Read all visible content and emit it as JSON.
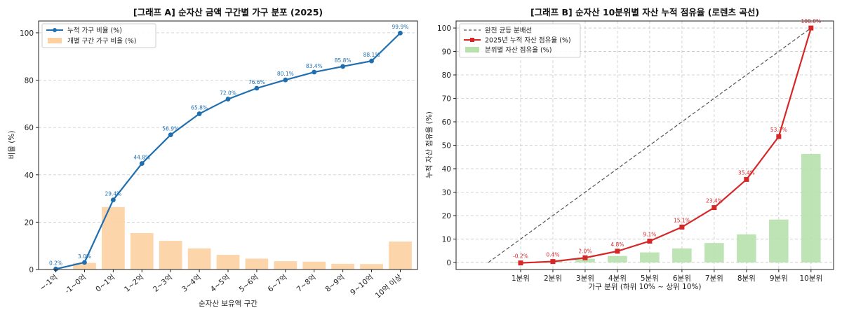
{
  "colors": {
    "line_a": "#1f6fb0",
    "bar_a": "#fdd0a2",
    "line_b": "#d62728",
    "bar_b": "#b7e1ad",
    "equality": "#555555",
    "grid": "#c8c8c8"
  },
  "chart_data": [
    {
      "type": "bar",
      "title": "[그래프 A] 순자산 금액 구간별 가구 분포 (2025)",
      "xlabel": "순자산 보유액 구간",
      "ylabel": "비율 (%)",
      "ylim": [
        0,
        105
      ],
      "yticks": [
        0,
        20,
        40,
        60,
        80,
        100
      ],
      "grid": true,
      "legend_position": "top-left",
      "categories": [
        "~-1억",
        "-1~0억",
        "0~1억",
        "1~2억",
        "2~3억",
        "3~4억",
        "4~5억",
        "5~6억",
        "6~7억",
        "7~8억",
        "8~9억",
        "9~10억",
        "10억 이상"
      ],
      "series": [
        {
          "name": "누적 가구 비율 (%)",
          "type": "line",
          "values": [
            0.2,
            3.0,
            29.4,
            44.8,
            56.9,
            65.8,
            72.0,
            76.6,
            80.1,
            83.4,
            85.8,
            88.1,
            99.9
          ],
          "labels": [
            "0.2%",
            "3.0%",
            "29.4%",
            "44.8%",
            "56.9%",
            "65.8%",
            "72.0%",
            "76.6%",
            "80.1%",
            "83.4%",
            "85.8%",
            "88.1%",
            "99.9%"
          ]
        },
        {
          "name": "개별 구간 가구 비율 (%)",
          "type": "bar",
          "values": [
            0.2,
            2.8,
            26.4,
            15.4,
            12.1,
            8.9,
            6.2,
            4.6,
            3.5,
            3.3,
            2.4,
            2.3,
            11.8
          ]
        }
      ]
    },
    {
      "type": "line",
      "title": "[그래프 B] 순자산 10분위별 자산 누적 점유율 (로렌츠 곡선)",
      "xlabel": "가구 분위 (하위 10% ~ 상위 10%)",
      "ylabel": "누적 자산 점유율 (%)",
      "ylim": [
        -3,
        103
      ],
      "yticks": [
        0,
        10,
        20,
        30,
        40,
        50,
        60,
        70,
        80,
        90,
        100
      ],
      "grid": true,
      "legend_position": "top-left",
      "categories": [
        "1분위",
        "2분위",
        "3분위",
        "4분위",
        "5분위",
        "6분위",
        "7분위",
        "8분위",
        "9분위",
        "10분위"
      ],
      "series": [
        {
          "name": "완전 균등 분배선",
          "type": "dashed-line",
          "x": [
            0,
            10
          ],
          "values": [
            0,
            100
          ]
        },
        {
          "name": "2025년 누적 자산 점유율 (%)",
          "type": "line",
          "values": [
            -0.2,
            0.4,
            2.0,
            4.8,
            9.1,
            15.1,
            23.4,
            35.4,
            53.7,
            100.0
          ],
          "labels": [
            "-0.2%",
            "0.4%",
            "2.0%",
            "4.8%",
            "9.1%",
            "15.1%",
            "23.4%",
            "35.4%",
            "53.7%",
            "100.0%"
          ]
        },
        {
          "name": "분위별 자산 점유율 (%)",
          "type": "bar",
          "values": [
            -0.2,
            0.6,
            1.6,
            2.8,
            4.3,
            6.0,
            8.3,
            12.0,
            18.3,
            46.3
          ]
        }
      ]
    }
  ]
}
